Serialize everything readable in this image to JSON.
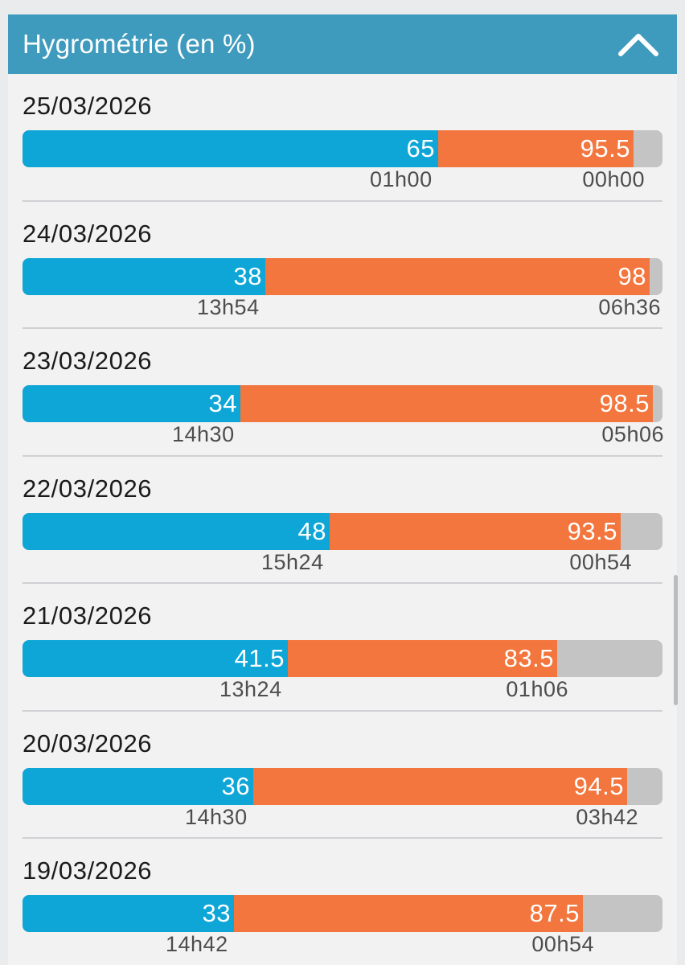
{
  "header": {
    "title": "Hygrométrie (en %)",
    "icon": "chevron-up-icon"
  },
  "colors": {
    "min": "#0ea6d7",
    "max": "#f2763d",
    "remainder": "#c4c4c4",
    "header": "#3f9bbd"
  },
  "days": [
    {
      "date": "25/03/2026",
      "min": {
        "value": "65",
        "pct": 65
      },
      "max": {
        "value": "95.5",
        "pct": 95.5
      },
      "min_time": "01h00",
      "max_time": "00h00"
    },
    {
      "date": "24/03/2026",
      "min": {
        "value": "38",
        "pct": 38
      },
      "max": {
        "value": "98",
        "pct": 98
      },
      "min_time": "13h54",
      "max_time": "06h36"
    },
    {
      "date": "23/03/2026",
      "min": {
        "value": "34",
        "pct": 34
      },
      "max": {
        "value": "98.5",
        "pct": 98.5
      },
      "min_time": "14h30",
      "max_time": "05h06"
    },
    {
      "date": "22/03/2026",
      "min": {
        "value": "48",
        "pct": 48
      },
      "max": {
        "value": "93.5",
        "pct": 93.5
      },
      "min_time": "15h24",
      "max_time": "00h54"
    },
    {
      "date": "21/03/2026",
      "min": {
        "value": "41.5",
        "pct": 41.5
      },
      "max": {
        "value": "83.5",
        "pct": 83.5
      },
      "min_time": "13h24",
      "max_time": "01h06"
    },
    {
      "date": "20/03/2026",
      "min": {
        "value": "36",
        "pct": 36
      },
      "max": {
        "value": "94.5",
        "pct": 94.5
      },
      "min_time": "14h30",
      "max_time": "03h42"
    },
    {
      "date": "19/03/2026",
      "min": {
        "value": "33",
        "pct": 33
      },
      "max": {
        "value": "87.5",
        "pct": 87.5
      },
      "min_time": "14h42",
      "max_time": "00h54"
    }
  ]
}
